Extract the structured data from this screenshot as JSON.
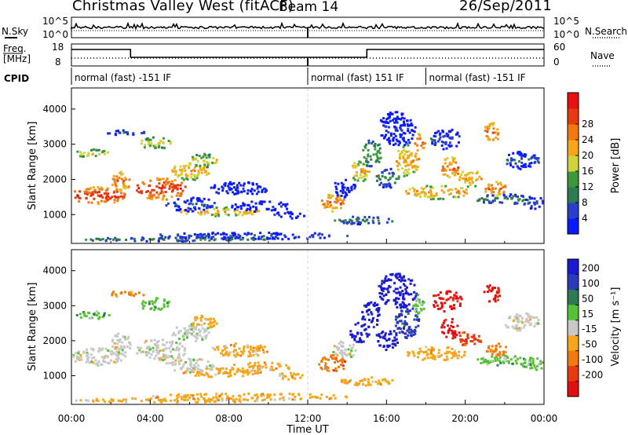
{
  "header": {
    "title": "Christmas Valley West (fitACF)",
    "beam": "Beam 14",
    "date": "26/Sep/2011"
  },
  "labels": {
    "nsky": "N.Sky",
    "nsearch": "N.Search",
    "freq_line1": "Freq.",
    "freq_line2": "[MHz]",
    "nave": "Nave",
    "cpid": "CPID",
    "xlabel": "Time UT"
  },
  "noise_panel": {
    "left_ticks": [
      "10^5",
      "10^0"
    ],
    "right_ticks": [
      "10^5",
      "10^0"
    ]
  },
  "freq_panel": {
    "left_ticks": [
      "18",
      "8"
    ],
    "right_ticks": [
      "60",
      "0"
    ],
    "freq_segments": [
      {
        "start": 0,
        "end": 3.0,
        "level": "high"
      },
      {
        "start": 3.0,
        "end": 15.0,
        "level": "low"
      },
      {
        "start": 15.0,
        "end": 24.0,
        "level": "high"
      }
    ]
  },
  "cpid_segments": [
    {
      "start": 0,
      "end": 12.0,
      "label": "normal (fast) -151 IF"
    },
    {
      "start": 12.0,
      "end": 18.0,
      "label": "normal (fast) 151 IF"
    },
    {
      "start": 18.0,
      "end": 24.0,
      "label": "normal (fast) -151 IF"
    }
  ],
  "chart_data": [
    {
      "type": "heatmap",
      "name": "power",
      "ylabel": "Slant Range [km]",
      "xlabel": "Time UT",
      "xlim": [
        0,
        24
      ],
      "ylim": [
        180,
        4600
      ],
      "x_ticks": [
        "00:00",
        "04:00",
        "08:00",
        "12:00",
        "16:00",
        "20:00",
        "00:00"
      ],
      "y_ticks": [
        1000,
        2000,
        3000,
        4000
      ],
      "colorbar": {
        "label": "Power [dB]",
        "ticks": [
          4,
          8,
          12,
          16,
          20,
          24,
          28
        ],
        "colors": [
          "#0a1aff",
          "#2a3fc8",
          "#2e7a52",
          "#3a9a3a",
          "#cfd43c",
          "#f5a61a",
          "#f07a10",
          "#e83a10",
          "#e81010"
        ]
      }
    },
    {
      "type": "heatmap",
      "name": "velocity",
      "ylabel": "Slant Range [km]",
      "xlabel": "Time UT",
      "xlim": [
        0,
        24
      ],
      "ylim": [
        180,
        4600
      ],
      "x_ticks": [
        "00:00",
        "04:00",
        "08:00",
        "12:00",
        "16:00",
        "20:00",
        "00:00"
      ],
      "y_ticks": [
        1000,
        2000,
        3000,
        4000
      ],
      "colorbar": {
        "label": "Velocity [m s⁻¹]",
        "ticks": [
          200,
          100,
          50,
          15,
          -15,
          -50,
          -100,
          -200
        ],
        "colors": [
          "#1a1ad0",
          "#2a3ab8",
          "#2e7a52",
          "#54c234",
          "#c8c8c8",
          "#f5a61a",
          "#f07a10",
          "#e83a10",
          "#e01010"
        ]
      }
    }
  ]
}
